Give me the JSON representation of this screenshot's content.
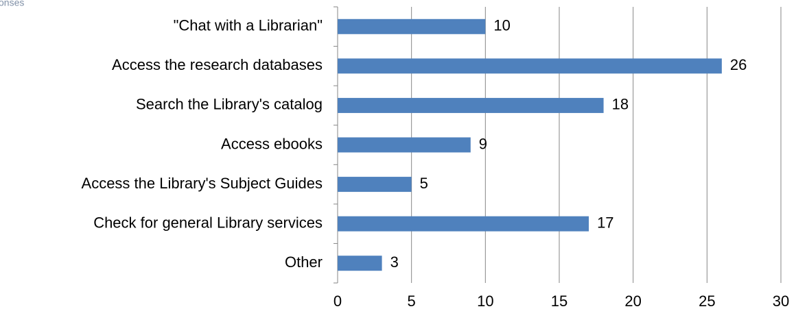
{
  "chart_data": {
    "type": "bar",
    "orientation": "horizontal",
    "caption": "onses",
    "categories": [
      "\"Chat with a Librarian\"",
      "Access the research databases",
      "Search the Library's catalog",
      "Access ebooks",
      "Access the Library's Subject Guides",
      "Check for general Library services",
      "Other"
    ],
    "values": [
      10,
      26,
      18,
      9,
      5,
      17,
      3
    ],
    "color": "#4f81bd",
    "xlim": [
      0,
      30
    ],
    "xticks": [
      0,
      5,
      10,
      15,
      20,
      25,
      30
    ],
    "grid": true
  }
}
